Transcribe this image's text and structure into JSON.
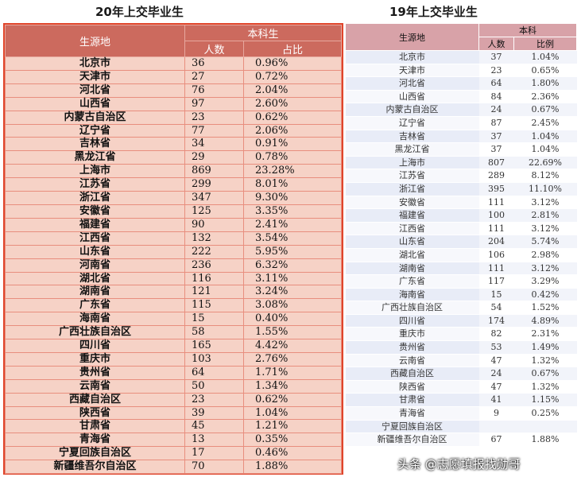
{
  "title_2020": "20年上交毕业生",
  "title_2019": "19年上交毕业生",
  "headers_2020": {
    "region": "生源地",
    "group": "本科生",
    "count": "人数",
    "ratio": "占比"
  },
  "headers_2019": {
    "region": "生源地",
    "group": "本科",
    "count": "人数",
    "ratio": "比例"
  },
  "rows_2020": [
    [
      "北京市",
      "36",
      "0.96%"
    ],
    [
      "天津市",
      "27",
      "0.72%"
    ],
    [
      "河北省",
      "76",
      "2.04%"
    ],
    [
      "山西省",
      "97",
      "2.60%"
    ],
    [
      "内蒙古自治区",
      "23",
      "0.62%"
    ],
    [
      "辽宁省",
      "77",
      "2.06%"
    ],
    [
      "吉林省",
      "34",
      "0.91%"
    ],
    [
      "黑龙江省",
      "29",
      "0.78%"
    ],
    [
      "上海市",
      "869",
      "23.28%"
    ],
    [
      "江苏省",
      "299",
      "8.01%"
    ],
    [
      "浙江省",
      "347",
      "9.30%"
    ],
    [
      "安徽省",
      "125",
      "3.35%"
    ],
    [
      "福建省",
      "90",
      "2.41%"
    ],
    [
      "江西省",
      "132",
      "3.54%"
    ],
    [
      "山东省",
      "222",
      "5.95%"
    ],
    [
      "河南省",
      "236",
      "6.32%"
    ],
    [
      "湖北省",
      "116",
      "3.11%"
    ],
    [
      "湖南省",
      "121",
      "3.24%"
    ],
    [
      "广东省",
      "115",
      "3.08%"
    ],
    [
      "海南省",
      "15",
      "0.40%"
    ],
    [
      "广西壮族自治区",
      "58",
      "1.55%"
    ],
    [
      "四川省",
      "165",
      "4.42%"
    ],
    [
      "重庆市",
      "103",
      "2.76%"
    ],
    [
      "贵州省",
      "64",
      "1.71%"
    ],
    [
      "云南省",
      "50",
      "1.34%"
    ],
    [
      "西藏自治区",
      "23",
      "0.62%"
    ],
    [
      "陕西省",
      "39",
      "1.04%"
    ],
    [
      "甘肃省",
      "45",
      "1.21%"
    ],
    [
      "青海省",
      "13",
      "0.35%"
    ],
    [
      "宁夏回族自治区",
      "17",
      "0.46%"
    ],
    [
      "新疆维吾尔自治区",
      "70",
      "1.88%"
    ]
  ],
  "rows_2019": [
    [
      "北京市",
      "37",
      "1.04%"
    ],
    [
      "天津市",
      "23",
      "0.65%"
    ],
    [
      "河北省",
      "64",
      "1.80%"
    ],
    [
      "山西省",
      "84",
      "2.36%"
    ],
    [
      "内蒙古自治区",
      "24",
      "0.67%"
    ],
    [
      "辽宁省",
      "87",
      "2.45%"
    ],
    [
      "吉林省",
      "37",
      "1.04%"
    ],
    [
      "黑龙江省",
      "37",
      "1.04%"
    ],
    [
      "上海市",
      "807",
      "22.69%"
    ],
    [
      "江苏省",
      "289",
      "8.12%"
    ],
    [
      "浙江省",
      "395",
      "11.10%"
    ],
    [
      "安徽省",
      "111",
      "3.12%"
    ],
    [
      "福建省",
      "100",
      "2.81%"
    ],
    [
      "江西省",
      "111",
      "3.12%"
    ],
    [
      "山东省",
      "204",
      "5.74%"
    ],
    [
      "湖北省",
      "106",
      "2.98%"
    ],
    [
      "湖南省",
      "111",
      "3.12%"
    ],
    [
      "广东省",
      "117",
      "3.29%"
    ],
    [
      "海南省",
      "15",
      "0.42%"
    ],
    [
      "广西壮族自治区",
      "54",
      "1.52%"
    ],
    [
      "四川省",
      "174",
      "4.89%"
    ],
    [
      "重庆市",
      "82",
      "2.31%"
    ],
    [
      "贵州省",
      "53",
      "1.49%"
    ],
    [
      "云南省",
      "47",
      "1.32%"
    ],
    [
      "西藏自治区",
      "24",
      "0.67%"
    ],
    [
      "陕西省",
      "47",
      "1.32%"
    ],
    [
      "甘肃省",
      "41",
      "1.15%"
    ],
    [
      "青海省",
      "9",
      "0.25%"
    ],
    [
      "宁夏回族自治区",
      "",
      ""
    ],
    [
      "新疆维吾尔自治区",
      "67",
      "1.88%"
    ]
  ],
  "watermark": "头条 @志愿填报找勋哥"
}
